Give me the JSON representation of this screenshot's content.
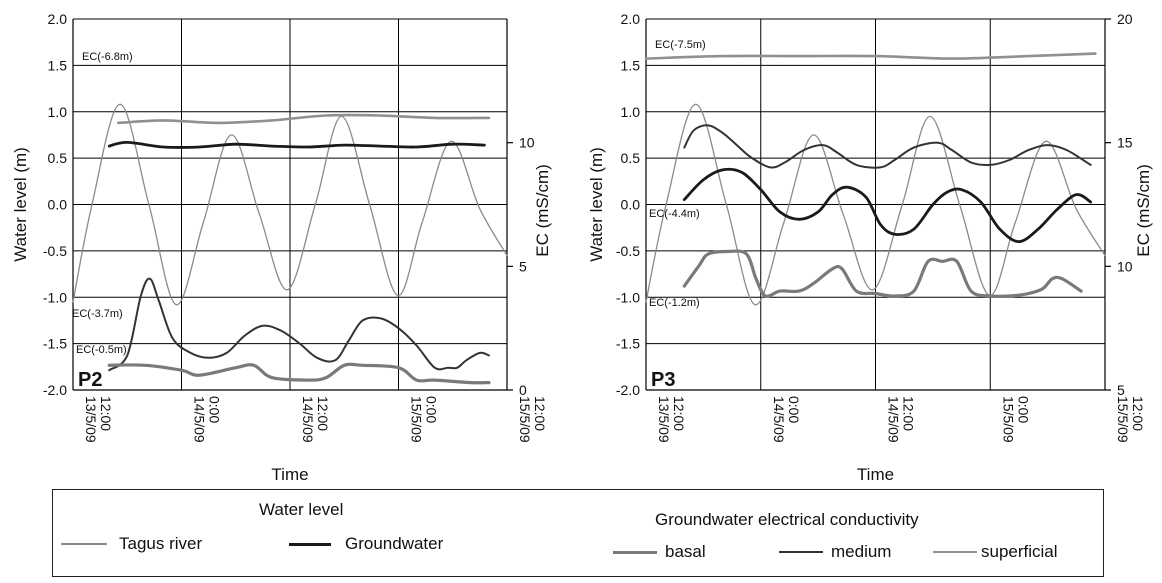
{
  "colors": {
    "tagus": "#8a8a8a",
    "groundwater": "#1a1a1a",
    "basal": "#7a7a7a",
    "medium": "#333333",
    "superficial": "#909090"
  },
  "x_tick_labels": [
    "13/5/09 12:00",
    "14/5/09 0:00",
    "14/5/09 12:00",
    "15/5/09 0:00",
    "15/5/09 12:00"
  ],
  "legend": {
    "water_level_heading": "Water level",
    "ec_heading": "Groundwater electrical conductivity",
    "tagus": "Tagus river",
    "groundwater": "Groundwater",
    "basal": "basal",
    "medium": "medium",
    "superficial": "superficial"
  },
  "chart_data": [
    {
      "type": "line",
      "panel_label": "P2",
      "xlabel": "Time",
      "ylabel": "Water level (m)",
      "y2label": "EC (mS/cm)",
      "xlim": [
        0,
        48
      ],
      "x_unit": "hours after 13/5/09 12:00",
      "ylim": [
        -2.0,
        2.0
      ],
      "y_ticks": [
        "2.0",
        "1.5",
        "1.0",
        "0.5",
        "0.0",
        "-0.5",
        "-1.0",
        "-1.5",
        "-2.0"
      ],
      "y2lim": [
        0,
        15
      ],
      "y2_ticks": [
        "0",
        "5",
        "10"
      ],
      "grid": true,
      "annotations": [
        "EC(-6.8m)",
        "EC(-3.7m)",
        "EC(-0.5m)"
      ],
      "series": [
        {
          "name": "Tagus river",
          "axis": "left",
          "style": "tagus",
          "x": [
            0,
            2.1,
            5.2,
            8.4,
            11.4,
            14.4,
            17.5,
            20.6,
            23.7,
            26.8,
            29.7,
            32.8,
            35.9,
            38.6,
            41.8,
            45.0,
            48.0
          ],
          "y": [
            -1.05,
            0.0,
            1.08,
            0.0,
            -1.08,
            -0.2,
            0.75,
            -0.1,
            -0.92,
            0.0,
            0.95,
            0.0,
            -0.98,
            -0.2,
            0.68,
            -0.05,
            -0.55
          ]
        },
        {
          "name": "Groundwater",
          "axis": "left",
          "style": "groundwater",
          "x": [
            4.0,
            6.0,
            10.0,
            14.0,
            18.0,
            22.0,
            26.0,
            30.0,
            34.0,
            38.0,
            42.0,
            45.5
          ],
          "y": [
            0.63,
            0.67,
            0.62,
            0.62,
            0.65,
            0.63,
            0.62,
            0.64,
            0.63,
            0.62,
            0.65,
            0.64
          ]
        },
        {
          "name": "EC(-6.8m)",
          "axis": "right",
          "style": "superficial",
          "x": [
            5,
            10,
            16,
            22,
            28,
            34,
            40,
            46
          ],
          "y": [
            10.8,
            10.9,
            10.8,
            10.9,
            11.1,
            11.1,
            11.0,
            11.0
          ]
        },
        {
          "name": "EC(-3.7m)",
          "axis": "right",
          "style": "medium",
          "x": [
            4.0,
            6.0,
            7.5,
            8.5,
            9.5,
            11.0,
            13.0,
            15.0,
            17.0,
            19.0,
            21.0,
            23.0,
            25.0,
            27.0,
            29.0,
            30.5,
            32.0,
            34.0,
            36.0,
            38.0,
            40.0,
            41.5,
            42.5,
            43.5,
            45.0,
            46.0
          ],
          "y": [
            0.8,
            1.4,
            3.8,
            4.5,
            3.6,
            2.1,
            1.5,
            1.3,
            1.5,
            2.2,
            2.6,
            2.4,
            1.9,
            1.3,
            1.2,
            2.0,
            2.8,
            2.9,
            2.5,
            1.8,
            0.9,
            0.9,
            0.9,
            1.2,
            1.5,
            1.4
          ]
        },
        {
          "name": "EC(-0.5m)",
          "axis": "right",
          "style": "basal",
          "x": [
            4,
            8,
            12,
            14,
            18,
            20,
            22,
            26,
            28,
            30,
            32,
            36,
            38,
            40,
            44,
            46
          ],
          "y": [
            1.0,
            1.0,
            0.8,
            0.6,
            0.9,
            1.0,
            0.5,
            0.4,
            0.5,
            1.0,
            1.0,
            0.9,
            0.4,
            0.4,
            0.3,
            0.3
          ]
        }
      ]
    },
    {
      "type": "line",
      "panel_label": "P3",
      "xlabel": "Time",
      "ylabel": "Water level (m)",
      "y2label": "EC (mS/cm)",
      "xlim": [
        0,
        48
      ],
      "x_unit": "hours after 13/5/09 12:00",
      "ylim": [
        -2.0,
        2.0
      ],
      "y_ticks": [
        "2.0",
        "1.5",
        "1.0",
        "0.5",
        "0.0",
        "-0.5",
        "-1.0",
        "-1.5",
        "-2.0"
      ],
      "y2lim": [
        5,
        20
      ],
      "y2_ticks": [
        "5",
        "10",
        "15",
        "20"
      ],
      "grid": true,
      "annotations": [
        "EC(-7.5m)",
        "EC(-4.4m)",
        "EC(-1.2m)"
      ],
      "series": [
        {
          "name": "Tagus river",
          "axis": "left",
          "style": "tagus",
          "x": [
            0,
            2.1,
            5.2,
            8.4,
            11.4,
            14.4,
            17.5,
            20.6,
            23.7,
            26.8,
            29.7,
            32.8,
            35.9,
            38.6,
            41.8,
            45.0,
            48.0
          ],
          "y": [
            -1.05,
            0.0,
            1.08,
            0.0,
            -1.08,
            -0.2,
            0.75,
            -0.1,
            -0.92,
            0.0,
            0.95,
            0.0,
            -0.98,
            -0.2,
            0.68,
            -0.05,
            -0.55
          ]
        },
        {
          "name": "EC(-7.5m)",
          "axis": "right",
          "style": "superficial",
          "x": [
            0,
            8,
            16,
            24,
            32,
            40,
            47
          ],
          "y": [
            18.4,
            18.5,
            18.5,
            18.5,
            18.4,
            18.5,
            18.6
          ]
        },
        {
          "name": "medium",
          "axis": "right",
          "style": "medium",
          "x": [
            4.0,
            5.0,
            6.5,
            8.0,
            9.5,
            11.0,
            13.0,
            14.5,
            16.5,
            18.5,
            20.0,
            22.0,
            24.5,
            26.0,
            28.0,
            30.5,
            32.0,
            34.0,
            36.0,
            38.0,
            40.0,
            42.0,
            44.0,
            46.5
          ],
          "y": [
            14.8,
            15.5,
            15.7,
            15.4,
            14.9,
            14.4,
            14.0,
            14.2,
            14.7,
            14.9,
            14.6,
            14.1,
            14.0,
            14.3,
            14.8,
            15.0,
            14.7,
            14.2,
            14.1,
            14.3,
            14.7,
            14.9,
            14.7,
            14.1
          ]
        },
        {
          "name": "EC(-4.4m)",
          "axis": "right",
          "style": "groundwater",
          "x": [
            4.0,
            6.0,
            8.0,
            10.0,
            12.0,
            14.0,
            16.0,
            18.0,
            19.5,
            21.0,
            23.0,
            24.5,
            26.0,
            28.0,
            30.0,
            31.5,
            33.0,
            35.0,
            37.0,
            39.0,
            41.0,
            43.0,
            45.0,
            46.5
          ],
          "y": [
            12.7,
            13.5,
            13.9,
            13.8,
            13.1,
            12.2,
            11.9,
            12.2,
            12.9,
            13.2,
            12.8,
            11.7,
            11.3,
            11.5,
            12.5,
            13.0,
            13.1,
            12.6,
            11.5,
            11.0,
            11.5,
            12.3,
            12.9,
            12.6
          ]
        },
        {
          "name": "EC(-1.2m)",
          "axis": "right",
          "style": "basal",
          "x": [
            4.0,
            5.5,
            6.5,
            8.5,
            10.5,
            11.5,
            12.5,
            14.0,
            16.0,
            17.5,
            19.5,
            20.5,
            22.0,
            24.0,
            26.0,
            28.0,
            29.5,
            31.0,
            32.5,
            34.0,
            36.0,
            38.0,
            40.0,
            41.5,
            42.5,
            43.5,
            45.5
          ],
          "y": [
            9.2,
            10.0,
            10.5,
            10.6,
            10.5,
            9.5,
            8.8,
            9.0,
            9.0,
            9.3,
            9.9,
            9.9,
            9.0,
            8.9,
            8.8,
            9.0,
            10.2,
            10.2,
            10.2,
            9.0,
            8.8,
            8.8,
            8.9,
            9.1,
            9.5,
            9.5,
            9.0
          ]
        }
      ]
    }
  ]
}
